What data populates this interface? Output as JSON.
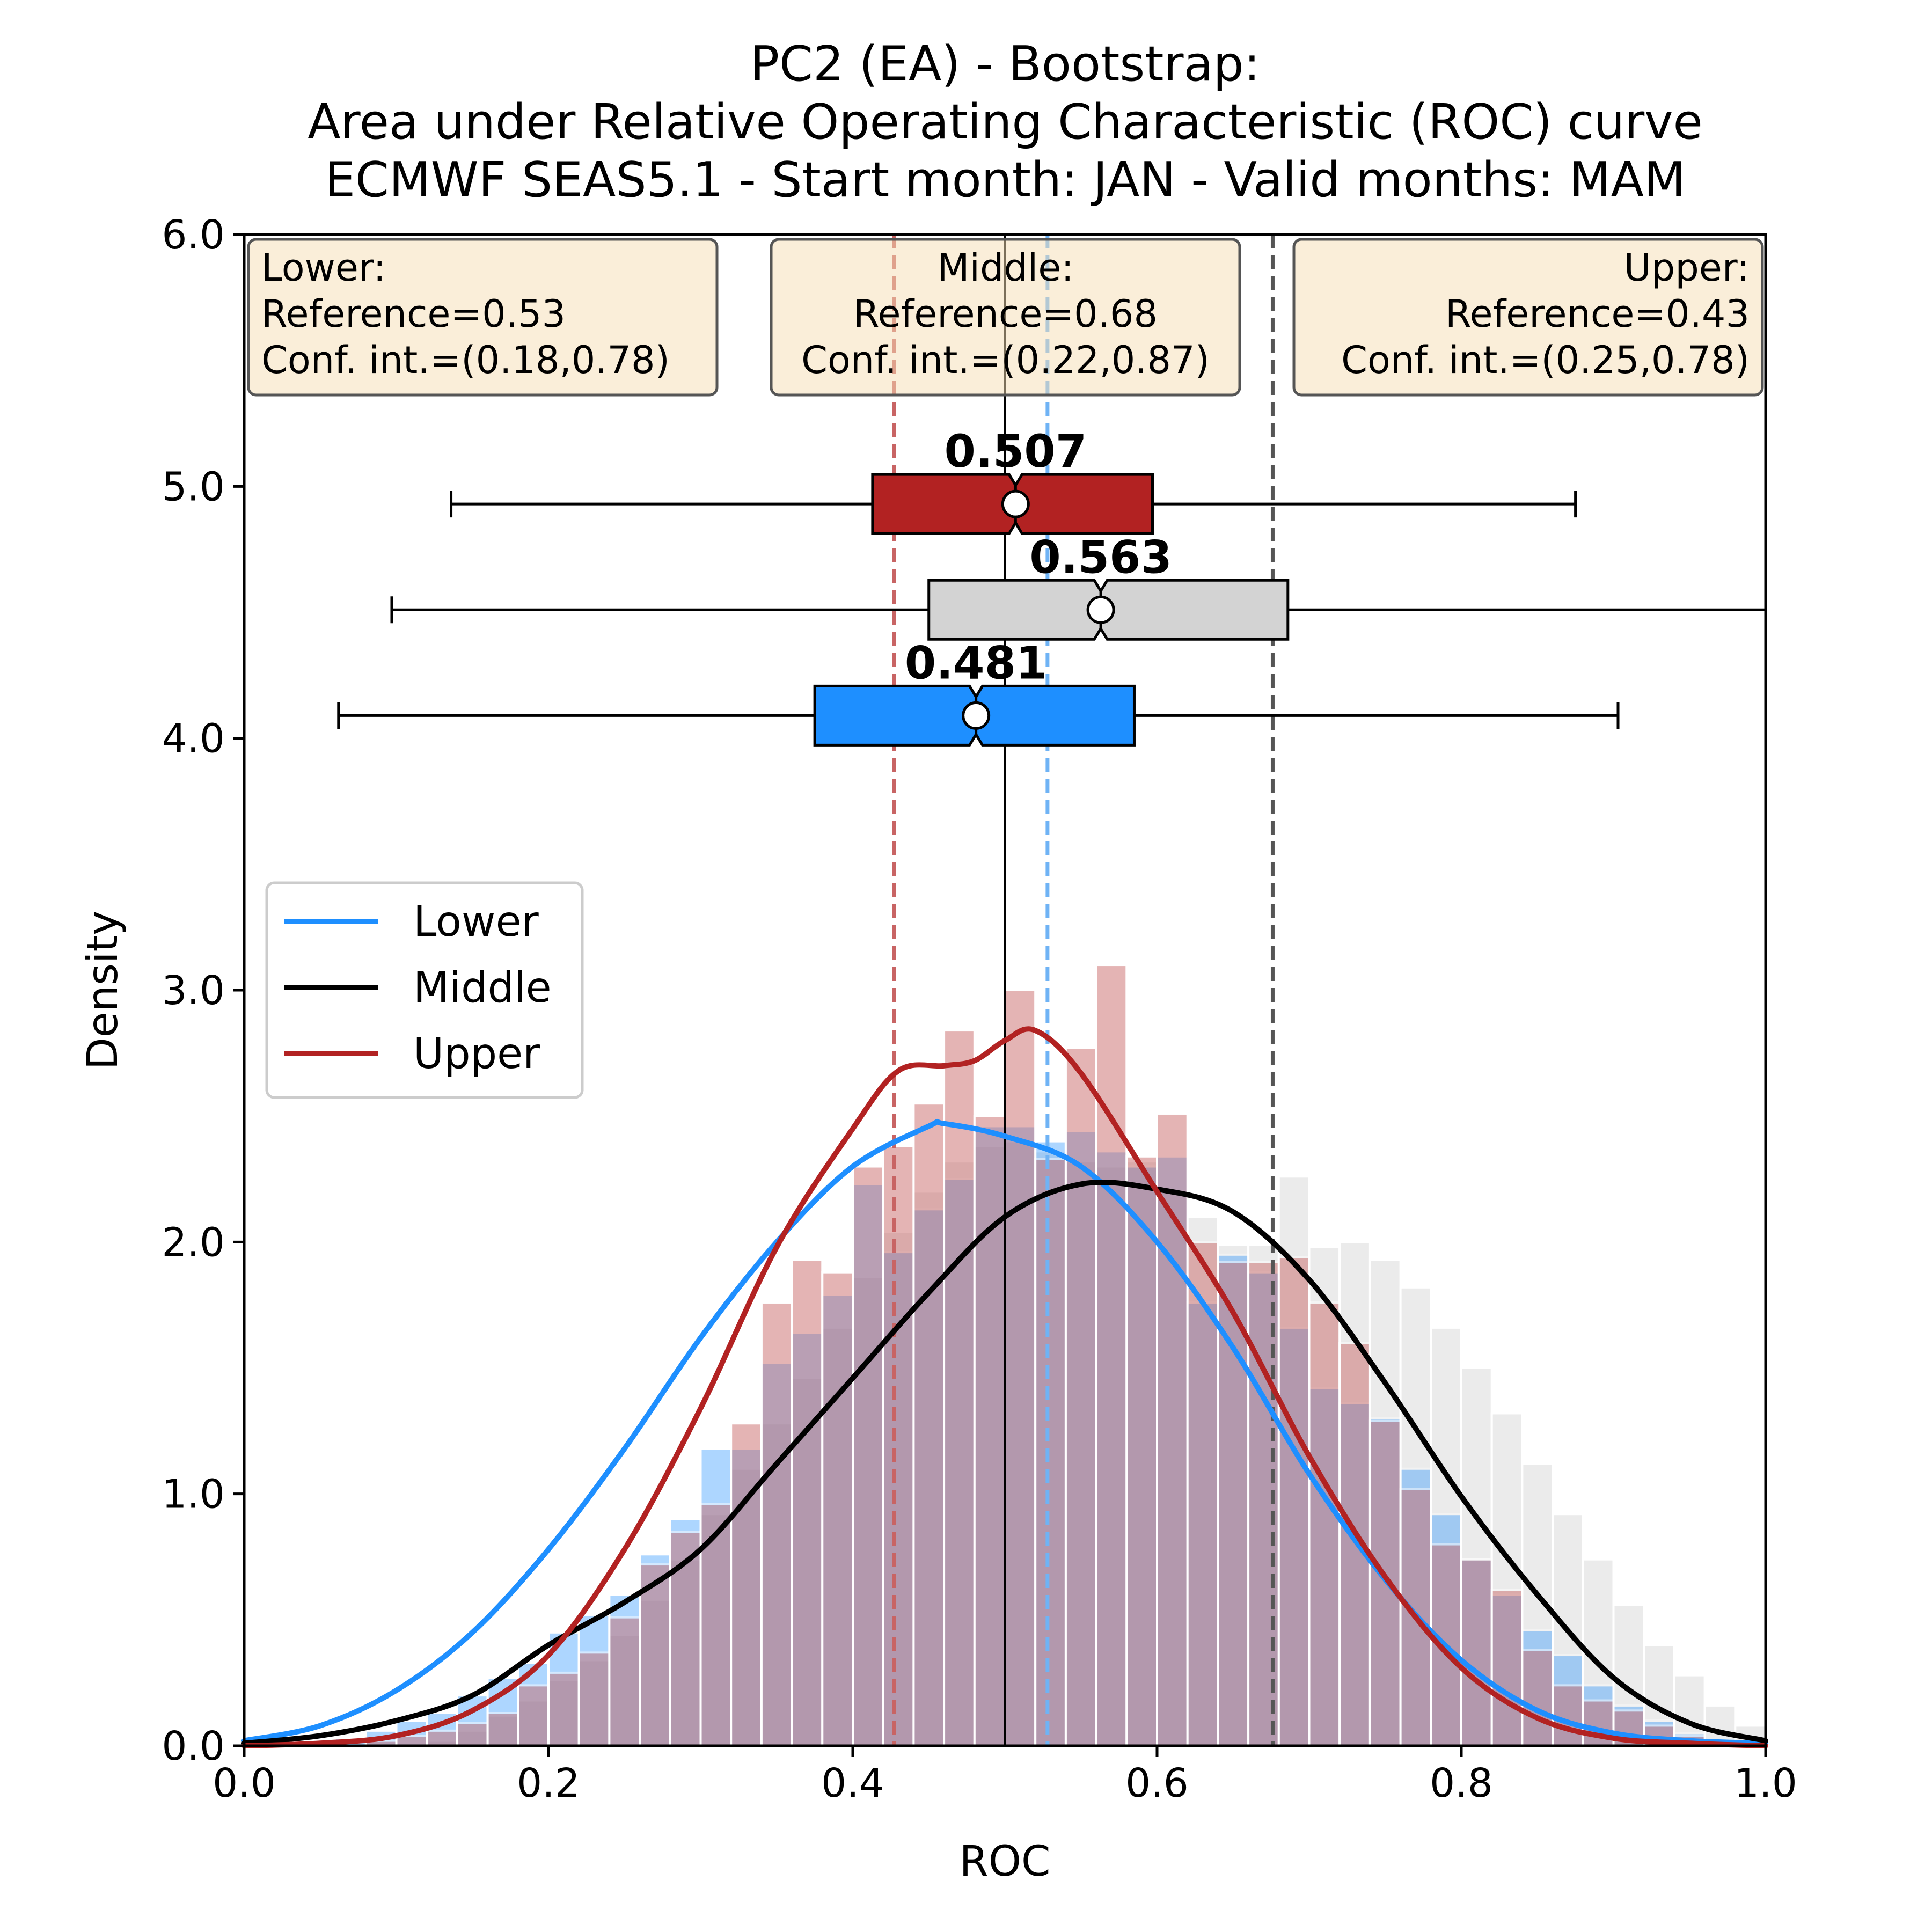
{
  "chart_data": {
    "type": "histogram_kde_boxplot",
    "title_lines": [
      "PC2 (EA) - Bootstrap:",
      "Area under Relative Operating Characteristic (ROC) curve",
      "ECMWF SEAS5.1 - Start month: JAN - Valid months: MAM"
    ],
    "xlabel": "ROC",
    "ylabel": "Density",
    "xlim": [
      0.0,
      1.0
    ],
    "ylim": [
      0.0,
      6.0
    ],
    "xticks": [
      0.0,
      0.2,
      0.4,
      0.6,
      0.8,
      1.0
    ],
    "xtick_labels": [
      "0.0",
      "0.2",
      "0.4",
      "0.6",
      "0.8",
      "1.0"
    ],
    "yticks": [
      0.0,
      1.0,
      2.0,
      3.0,
      4.0,
      5.0,
      6.0
    ],
    "ytick_labels": [
      "0.0",
      "1.0",
      "2.0",
      "3.0",
      "4.0",
      "5.0",
      "6.0"
    ],
    "grid": false,
    "legend": {
      "position": "center-left",
      "entries": [
        {
          "label": "Lower",
          "color": "#1e8fff"
        },
        {
          "label": "Middle",
          "color": "#000000"
        },
        {
          "label": "Upper",
          "color": "#b22222"
        }
      ]
    },
    "annotation_boxes": [
      {
        "align": "left",
        "lines": [
          "Lower:",
          "Reference=0.53",
          "Conf. int.=(0.18,0.78)"
        ]
      },
      {
        "align": "center",
        "lines": [
          "Middle:",
          "Reference=0.68",
          "Conf. int.=(0.22,0.87)"
        ]
      },
      {
        "align": "right",
        "lines": [
          "Upper:",
          "Reference=0.43",
          "Conf. int.=(0.25,0.78)"
        ]
      }
    ],
    "median_line": {
      "x": 0.5,
      "color": "#000000"
    },
    "reference_lines": [
      {
        "x": 0.528,
        "color": "#6fb3f5",
        "style": "dashed"
      },
      {
        "x": 0.676,
        "color": "#555555",
        "style": "dashed"
      },
      {
        "x": 0.427,
        "color": "#c86464",
        "style": "dashed"
      }
    ],
    "histograms": {
      "bin_edges_start": 0.0,
      "bin_width": 0.02,
      "bins": 50,
      "series": [
        {
          "name": "Middle",
          "color": "#dcdcdc",
          "opacity": 0.55,
          "values": [
            0,
            0,
            0,
            0,
            0,
            0,
            0.02,
            0.06,
            0.12,
            0.18,
            0.26,
            0.34,
            0.44,
            0.58,
            0.74,
            0.92,
            1.1,
            1.28,
            1.46,
            1.66,
            1.86,
            2.04,
            2.2,
            2.32,
            2.38,
            2.4,
            2.36,
            2.32,
            2.3,
            2.32,
            2.2,
            2.1,
            1.99,
            1.99,
            2.26,
            1.98,
            2.0,
            1.93,
            1.82,
            1.66,
            1.5,
            1.32,
            1.12,
            0.92,
            0.74,
            0.56,
            0.4,
            0.28,
            0.16,
            0.08
          ]
        },
        {
          "name": "Lower",
          "color": "#1e8fff",
          "opacity": 0.36,
          "values": [
            0,
            0,
            0,
            0.03,
            0.06,
            0.1,
            0.13,
            0.2,
            0.27,
            0.33,
            0.45,
            0.52,
            0.6,
            0.76,
            0.9,
            1.18,
            1.18,
            1.52,
            1.64,
            1.79,
            2.23,
            1.96,
            2.13,
            2.25,
            2.46,
            2.46,
            2.4,
            2.44,
            2.36,
            2.3,
            2.34,
            1.76,
            1.95,
            1.88,
            1.66,
            1.42,
            1.36,
            1.3,
            1.1,
            0.92,
            0.74,
            0.6,
            0.46,
            0.36,
            0.24,
            0.16,
            0.1,
            0.05,
            0.02,
            0.01
          ]
        },
        {
          "name": "Upper",
          "color": "#c86464",
          "opacity": 0.48,
          "values": [
            0,
            0,
            0,
            0,
            0.02,
            0.04,
            0.06,
            0.09,
            0.13,
            0.24,
            0.29,
            0.37,
            0.51,
            0.72,
            0.85,
            0.96,
            1.28,
            1.76,
            1.93,
            1.88,
            2.3,
            2.38,
            2.55,
            2.84,
            2.5,
            3.0,
            2.33,
            2.77,
            3.1,
            2.34,
            2.51,
            2.0,
            1.92,
            1.92,
            1.94,
            1.76,
            1.6,
            1.29,
            1.02,
            0.8,
            0.74,
            0.62,
            0.38,
            0.24,
            0.18,
            0.14,
            0.08,
            0.04,
            0.02,
            0
          ]
        }
      ]
    },
    "kde": [
      {
        "name": "Lower",
        "color": "#1e8fff",
        "x": [
          0,
          0.05,
          0.1,
          0.15,
          0.2,
          0.25,
          0.3,
          0.35,
          0.4,
          0.45,
          0.46,
          0.5,
          0.55,
          0.6,
          0.65,
          0.7,
          0.75,
          0.8,
          0.85,
          0.9,
          0.95,
          1.0
        ],
        "y": [
          0.02,
          0.08,
          0.22,
          0.45,
          0.78,
          1.18,
          1.62,
          2.0,
          2.3,
          2.46,
          2.47,
          2.42,
          2.3,
          2.0,
          1.58,
          1.08,
          0.66,
          0.34,
          0.14,
          0.05,
          0.02,
          0.01
        ]
      },
      {
        "name": "Middle",
        "color": "#000000",
        "x": [
          0,
          0.05,
          0.1,
          0.15,
          0.2,
          0.25,
          0.3,
          0.35,
          0.4,
          0.45,
          0.5,
          0.55,
          0.6,
          0.65,
          0.7,
          0.75,
          0.8,
          0.85,
          0.9,
          0.95,
          1.0
        ],
        "y": [
          0.01,
          0.04,
          0.1,
          0.2,
          0.4,
          0.57,
          0.78,
          1.12,
          1.46,
          1.8,
          2.1,
          2.23,
          2.21,
          2.12,
          1.85,
          1.44,
          0.99,
          0.6,
          0.27,
          0.09,
          0.02
        ]
      },
      {
        "name": "Upper",
        "color": "#b22222",
        "x": [
          0,
          0.05,
          0.1,
          0.15,
          0.2,
          0.25,
          0.3,
          0.35,
          0.4,
          0.43,
          0.46,
          0.48,
          0.5,
          0.52,
          0.55,
          0.6,
          0.65,
          0.7,
          0.75,
          0.8,
          0.85,
          0.9,
          0.95,
          1.0
        ],
        "y": [
          0,
          0.01,
          0.04,
          0.14,
          0.36,
          0.78,
          1.34,
          1.98,
          2.45,
          2.68,
          2.7,
          2.72,
          2.8,
          2.84,
          2.67,
          2.2,
          1.72,
          1.15,
          0.67,
          0.31,
          0.11,
          0.03,
          0.01,
          0
        ]
      }
    ],
    "boxplots": [
      {
        "name": "Upper",
        "y": 4.93,
        "color": "#b22222",
        "whisker_low": 0.136,
        "q1": 0.413,
        "median": 0.507,
        "q3": 0.597,
        "whisker_high": 0.875,
        "mean": 0.507,
        "label": "0.507"
      },
      {
        "name": "Middle",
        "y": 4.51,
        "color": "#d3d3d3",
        "whisker_low": 0.097,
        "q1": 0.45,
        "median": 0.563,
        "q3": 0.686,
        "whisker_high": 1.0,
        "mean": 0.563,
        "label": "0.563"
      },
      {
        "name": "Lower",
        "y": 4.09,
        "color": "#1e8fff",
        "whisker_low": 0.062,
        "q1": 0.375,
        "median": 0.481,
        "q3": 0.585,
        "whisker_high": 0.903,
        "mean": 0.481,
        "label": "0.481"
      }
    ]
  }
}
